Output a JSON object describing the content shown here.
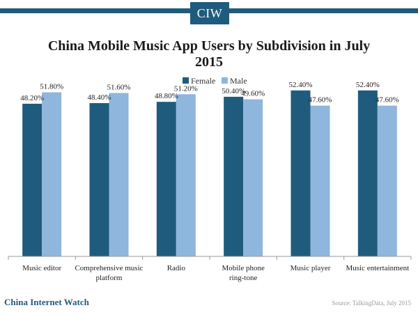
{
  "header": {
    "logo_text": "CIW",
    "brand_color": "#1f5b7d"
  },
  "footer": {
    "brand": "China Internet Watch",
    "source": "Source: TalkingData, July 2015"
  },
  "chart_data": {
    "type": "bar",
    "title": "China Mobile Music App Users by Subdivision in July 2015",
    "xlabel": "",
    "ylabel": "",
    "ylim": [
      0,
      55
    ],
    "grid": false,
    "legend_position": "top-center",
    "categories": [
      "Music editor",
      "Comprehensive music platform",
      "Radio",
      "Mobile phone ring-tone",
      "Music player",
      "Music entertainment"
    ],
    "series": [
      {
        "name": "Female",
        "color": "#1f5b7d",
        "values": [
          48.2,
          48.4,
          48.8,
          50.4,
          52.4,
          52.4
        ],
        "labels": [
          "48.20%",
          "48.40%",
          "48.80%",
          "50.40%",
          "52.40%",
          "52.40%"
        ]
      },
      {
        "name": "Male",
        "color": "#8fb6dc",
        "values": [
          51.8,
          51.6,
          51.2,
          49.6,
          47.6,
          47.6
        ],
        "labels": [
          "51.80%",
          "51.60%",
          "51.20%",
          "49.60%",
          "47.60%",
          "47.60%"
        ]
      }
    ]
  }
}
